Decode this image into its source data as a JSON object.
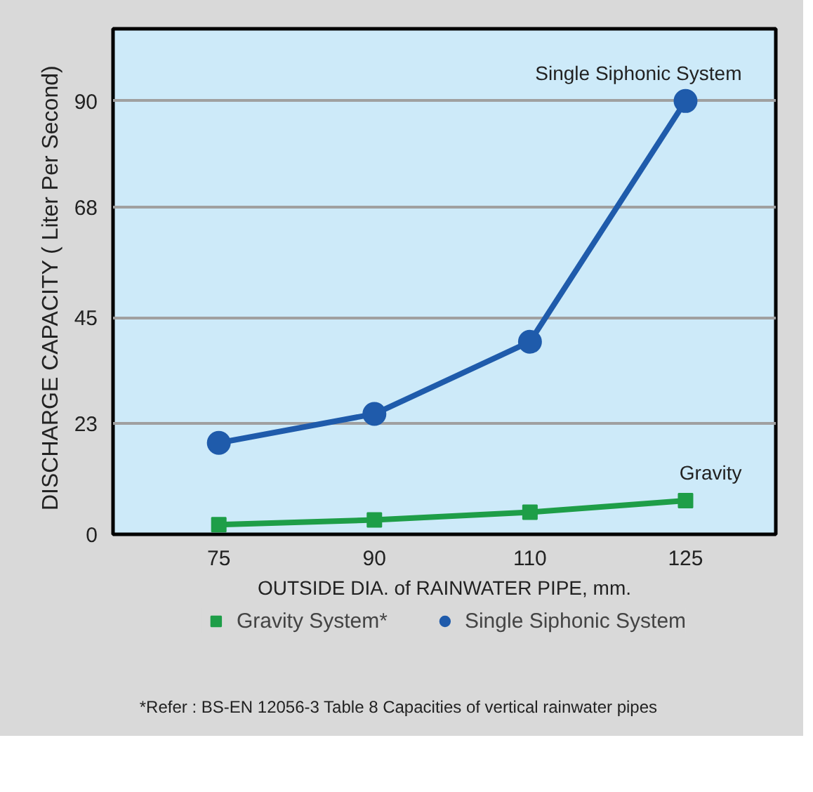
{
  "chart_data": {
    "type": "line",
    "xlabel": "OUTSIDE DIA. of RAINWATER PIPE, mm.",
    "ylabel": "DISCHARGE CAPACITY   ( Liter Per Second)",
    "categories": [
      "75",
      "90",
      "110",
      "125"
    ],
    "series": [
      {
        "name": "Gravity System*",
        "color": "#1e9e48",
        "marker": "square",
        "values": [
          2,
          3,
          4.6,
          7
        ]
      },
      {
        "name": "Single Siphonic System",
        "color": "#1f5bab",
        "marker": "circle",
        "values": [
          19,
          25,
          40,
          90
        ]
      }
    ],
    "ylim": [
      0,
      105
    ],
    "yticks": [
      0,
      23,
      45,
      68,
      90
    ],
    "grid": "y",
    "legend": "bottom",
    "annotations": [
      {
        "text": "Single Siphonic System",
        "x": "125",
        "y": 90
      },
      {
        "text": "Gravity",
        "x": "125",
        "y": 7
      },
      "*Refer : BS-EN 12056-3 Table 8 Capacities of vertical rainwater pipes"
    ]
  }
}
